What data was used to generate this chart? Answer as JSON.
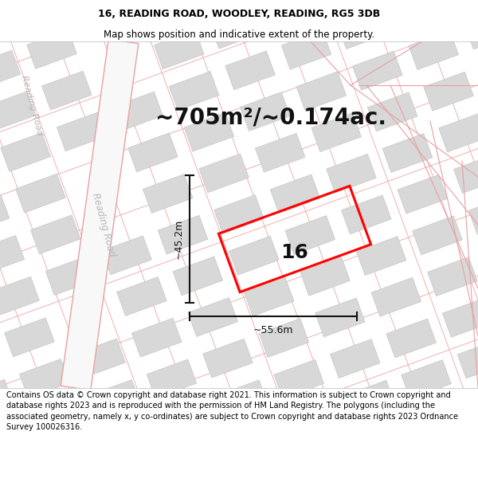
{
  "title": "16, READING ROAD, WOODLEY, READING, RG5 3DB",
  "subtitle": "Map shows position and indicative extent of the property.",
  "area_text": "~705m²/~0.174ac.",
  "footer": "Contains OS data © Crown copyright and database right 2021. This information is subject to Crown copyright and database rights 2023 and is reproduced with the permission of HM Land Registry. The polygons (including the associated geometry, namely x, y co-ordinates) are subject to Crown copyright and database rights 2023 Ordnance Survey 100026316.",
  "map_bg": "#f5f5f5",
  "road_outline_color": "#e8a0a0",
  "road_fill_color": "#ffffff",
  "building_fill": "#d8d8d8",
  "building_outline": "#c8c8c8",
  "plot_color": "#ff0000",
  "dim_color": "#111111",
  "road_label_color": "#b0b0b0",
  "dim_width": "~55.6m",
  "dim_height": "~45.2m",
  "plot_number": "16",
  "header_footer_bg": "#ffffff",
  "title_fontsize": 9,
  "subtitle_fontsize": 8.5,
  "area_fontsize": 20,
  "plot_num_fontsize": 18,
  "dim_fontsize": 9,
  "footer_fontsize": 7
}
